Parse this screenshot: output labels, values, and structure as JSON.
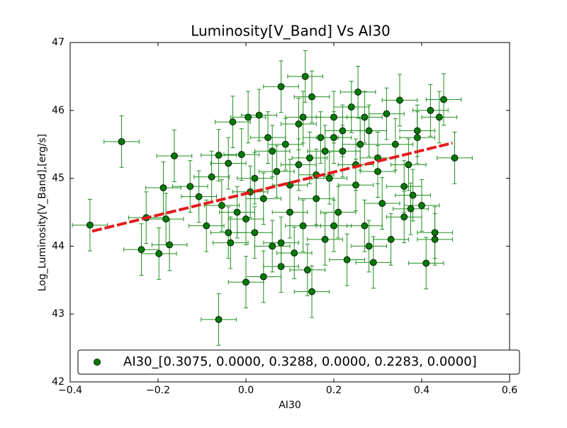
{
  "chart_data": {
    "type": "scatter",
    "title": "Luminosity[V_Band] Vs AI30",
    "xlabel": "AI30",
    "ylabel": "Log_Luminosity[V_Band],[erg/s]",
    "x": [
      -0.355,
      -0.283,
      -0.227,
      -0.182,
      -0.188,
      -0.198,
      -0.163,
      -0.174,
      -0.238,
      -0.127,
      -0.107,
      -0.09,
      -0.078,
      -0.062,
      -0.062,
      -0.055,
      -0.04,
      -0.04,
      -0.03,
      -0.035,
      -0.02,
      -0.01,
      0.0,
      0.005,
      0.01,
      0.03,
      0.02,
      0.04,
      0.05,
      0.06,
      0.07,
      0.08,
      0.08,
      0.09,
      0.1,
      0.11,
      0.12,
      0.13,
      0.135,
      0.14,
      0.15,
      0.145,
      0.15,
      0.16,
      0.17,
      0.18,
      0.19,
      0.2,
      0.21,
      0.22,
      0.23,
      0.24,
      0.25,
      0.255,
      0.26,
      0.27,
      0.28,
      0.29,
      0.3,
      0.31,
      0.32,
      0.33,
      0.34,
      0.35,
      0.36,
      0.37,
      0.38,
      0.39,
      0.4,
      0.41,
      0.42,
      0.43,
      0.44,
      0.45,
      0.475,
      0.43,
      0.375,
      0.39,
      0.36,
      0.3,
      0.27,
      0.22,
      0.18,
      0.12,
      0.06,
      0.02,
      0.0,
      0.04,
      0.1,
      0.2,
      0.25,
      0.16,
      0.08,
      0.28,
      0.13,
      0.2
    ],
    "series": [
      {
        "name": "AI30_[0.3075, 0.0000, 0.3288, 0.0000, 0.2283, 0.0000]",
        "color": "#007a00",
        "error_color": "#1f8f1f",
        "values": [
          44.31,
          45.54,
          44.42,
          44.4,
          44.86,
          43.89,
          45.33,
          44.02,
          43.95,
          44.88,
          44.73,
          44.3,
          45.02,
          45.34,
          42.92,
          44.6,
          44.2,
          45.22,
          45.83,
          44.05,
          44.5,
          45.35,
          43.47,
          45.9,
          44.8,
          45.93,
          44.2,
          43.55,
          45.6,
          44.0,
          45.1,
          46.35,
          43.7,
          45.5,
          44.9,
          43.9,
          45.8,
          44.3,
          46.5,
          43.65,
          46.2,
          45.3,
          43.33,
          44.7,
          45.6,
          44.1,
          45.0,
          45.9,
          44.5,
          45.4,
          43.8,
          46.05,
          44.9,
          46.27,
          45.5,
          44.3,
          45.7,
          43.76,
          45.1,
          44.63,
          45.95,
          44.1,
          45.5,
          46.15,
          44.43,
          45.2,
          44.75,
          45.7,
          44.6,
          43.75,
          46.0,
          44.1,
          45.9,
          46.16,
          45.3,
          44.2,
          44.55,
          45.6,
          44.88,
          45.3,
          45.9,
          45.7,
          45.4,
          45.2,
          45.4,
          45.0,
          44.4,
          44.7,
          44.5,
          44.3,
          45.2,
          45.05,
          44.05,
          44.0,
          45.9,
          45.6
        ],
        "xerr": 0.04,
        "yerr": 0.38
      }
    ],
    "fit": {
      "x": [
        -0.35,
        0.47
      ],
      "y": [
        44.22,
        45.52
      ],
      "color": "#e41a1c"
    },
    "xlim": [
      -0.4,
      0.6
    ],
    "ylim": [
      42,
      47
    ],
    "xticks": [
      {
        "value": -0.4,
        "label": "−0.4"
      },
      {
        "value": -0.2,
        "label": "−0.2"
      },
      {
        "value": 0,
        "label": "0.0"
      },
      0.2,
      0.4,
      0.6
    ],
    "yticks": [
      42,
      43,
      44,
      45,
      46,
      47
    ],
    "legend": "lower right"
  }
}
